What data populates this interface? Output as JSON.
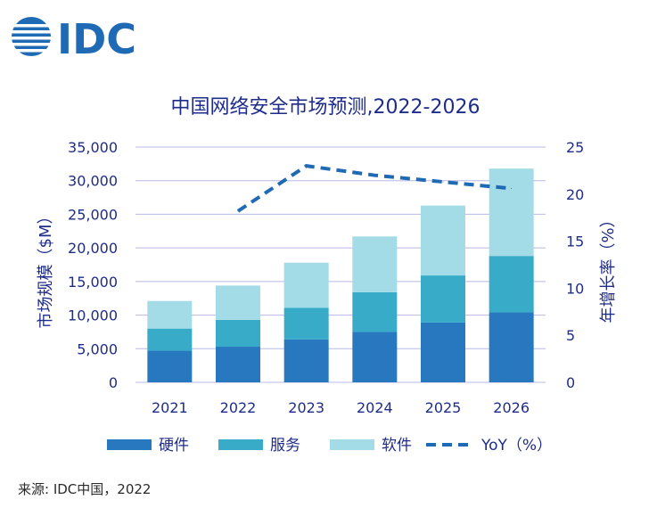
{
  "logo": {
    "text": "IDC",
    "color": "#1f6ab5"
  },
  "source": "来源: IDC中国，2022",
  "chart_data": {
    "type": "bar",
    "title": "中国网络安全市场预测,2022-2026",
    "categories": [
      "2021",
      "2022",
      "2023",
      "2024",
      "2025",
      "2026"
    ],
    "series": [
      {
        "name": "硬件",
        "values": [
          4700,
          5300,
          6400,
          7500,
          8900,
          10400
        ],
        "color": "#2878c0"
      },
      {
        "name": "服务",
        "values": [
          3300,
          4000,
          4700,
          5900,
          7000,
          8400
        ],
        "color": "#37abc8"
      },
      {
        "name": "软件",
        "values": [
          4100,
          5100,
          6700,
          8300,
          10400,
          13000
        ],
        "color": "#a3dce6"
      }
    ],
    "line_series": {
      "name": "YoY（%）",
      "x": [
        "2022",
        "2023",
        "2024",
        "2025",
        "2026"
      ],
      "values": [
        18.2,
        23.0,
        22.0,
        21.3,
        20.6
      ],
      "color": "#1f6ab5",
      "style": "dashed"
    },
    "ylabel": "市场规模（$M）",
    "ylim": [
      0,
      35000
    ],
    "yticks": [
      "0",
      "5,000",
      "10,000",
      "15,000",
      "20,000",
      "25,000",
      "30,000",
      "35,000"
    ],
    "y2label": "年增长率（%）",
    "y2lim": [
      0,
      25
    ],
    "y2ticks": [
      "0",
      "5",
      "10",
      "15",
      "20",
      "25"
    ],
    "grid": true,
    "legend": "bottom",
    "colors": {
      "text": "#1e2c8a",
      "grid": "#b8b8e6"
    }
  }
}
